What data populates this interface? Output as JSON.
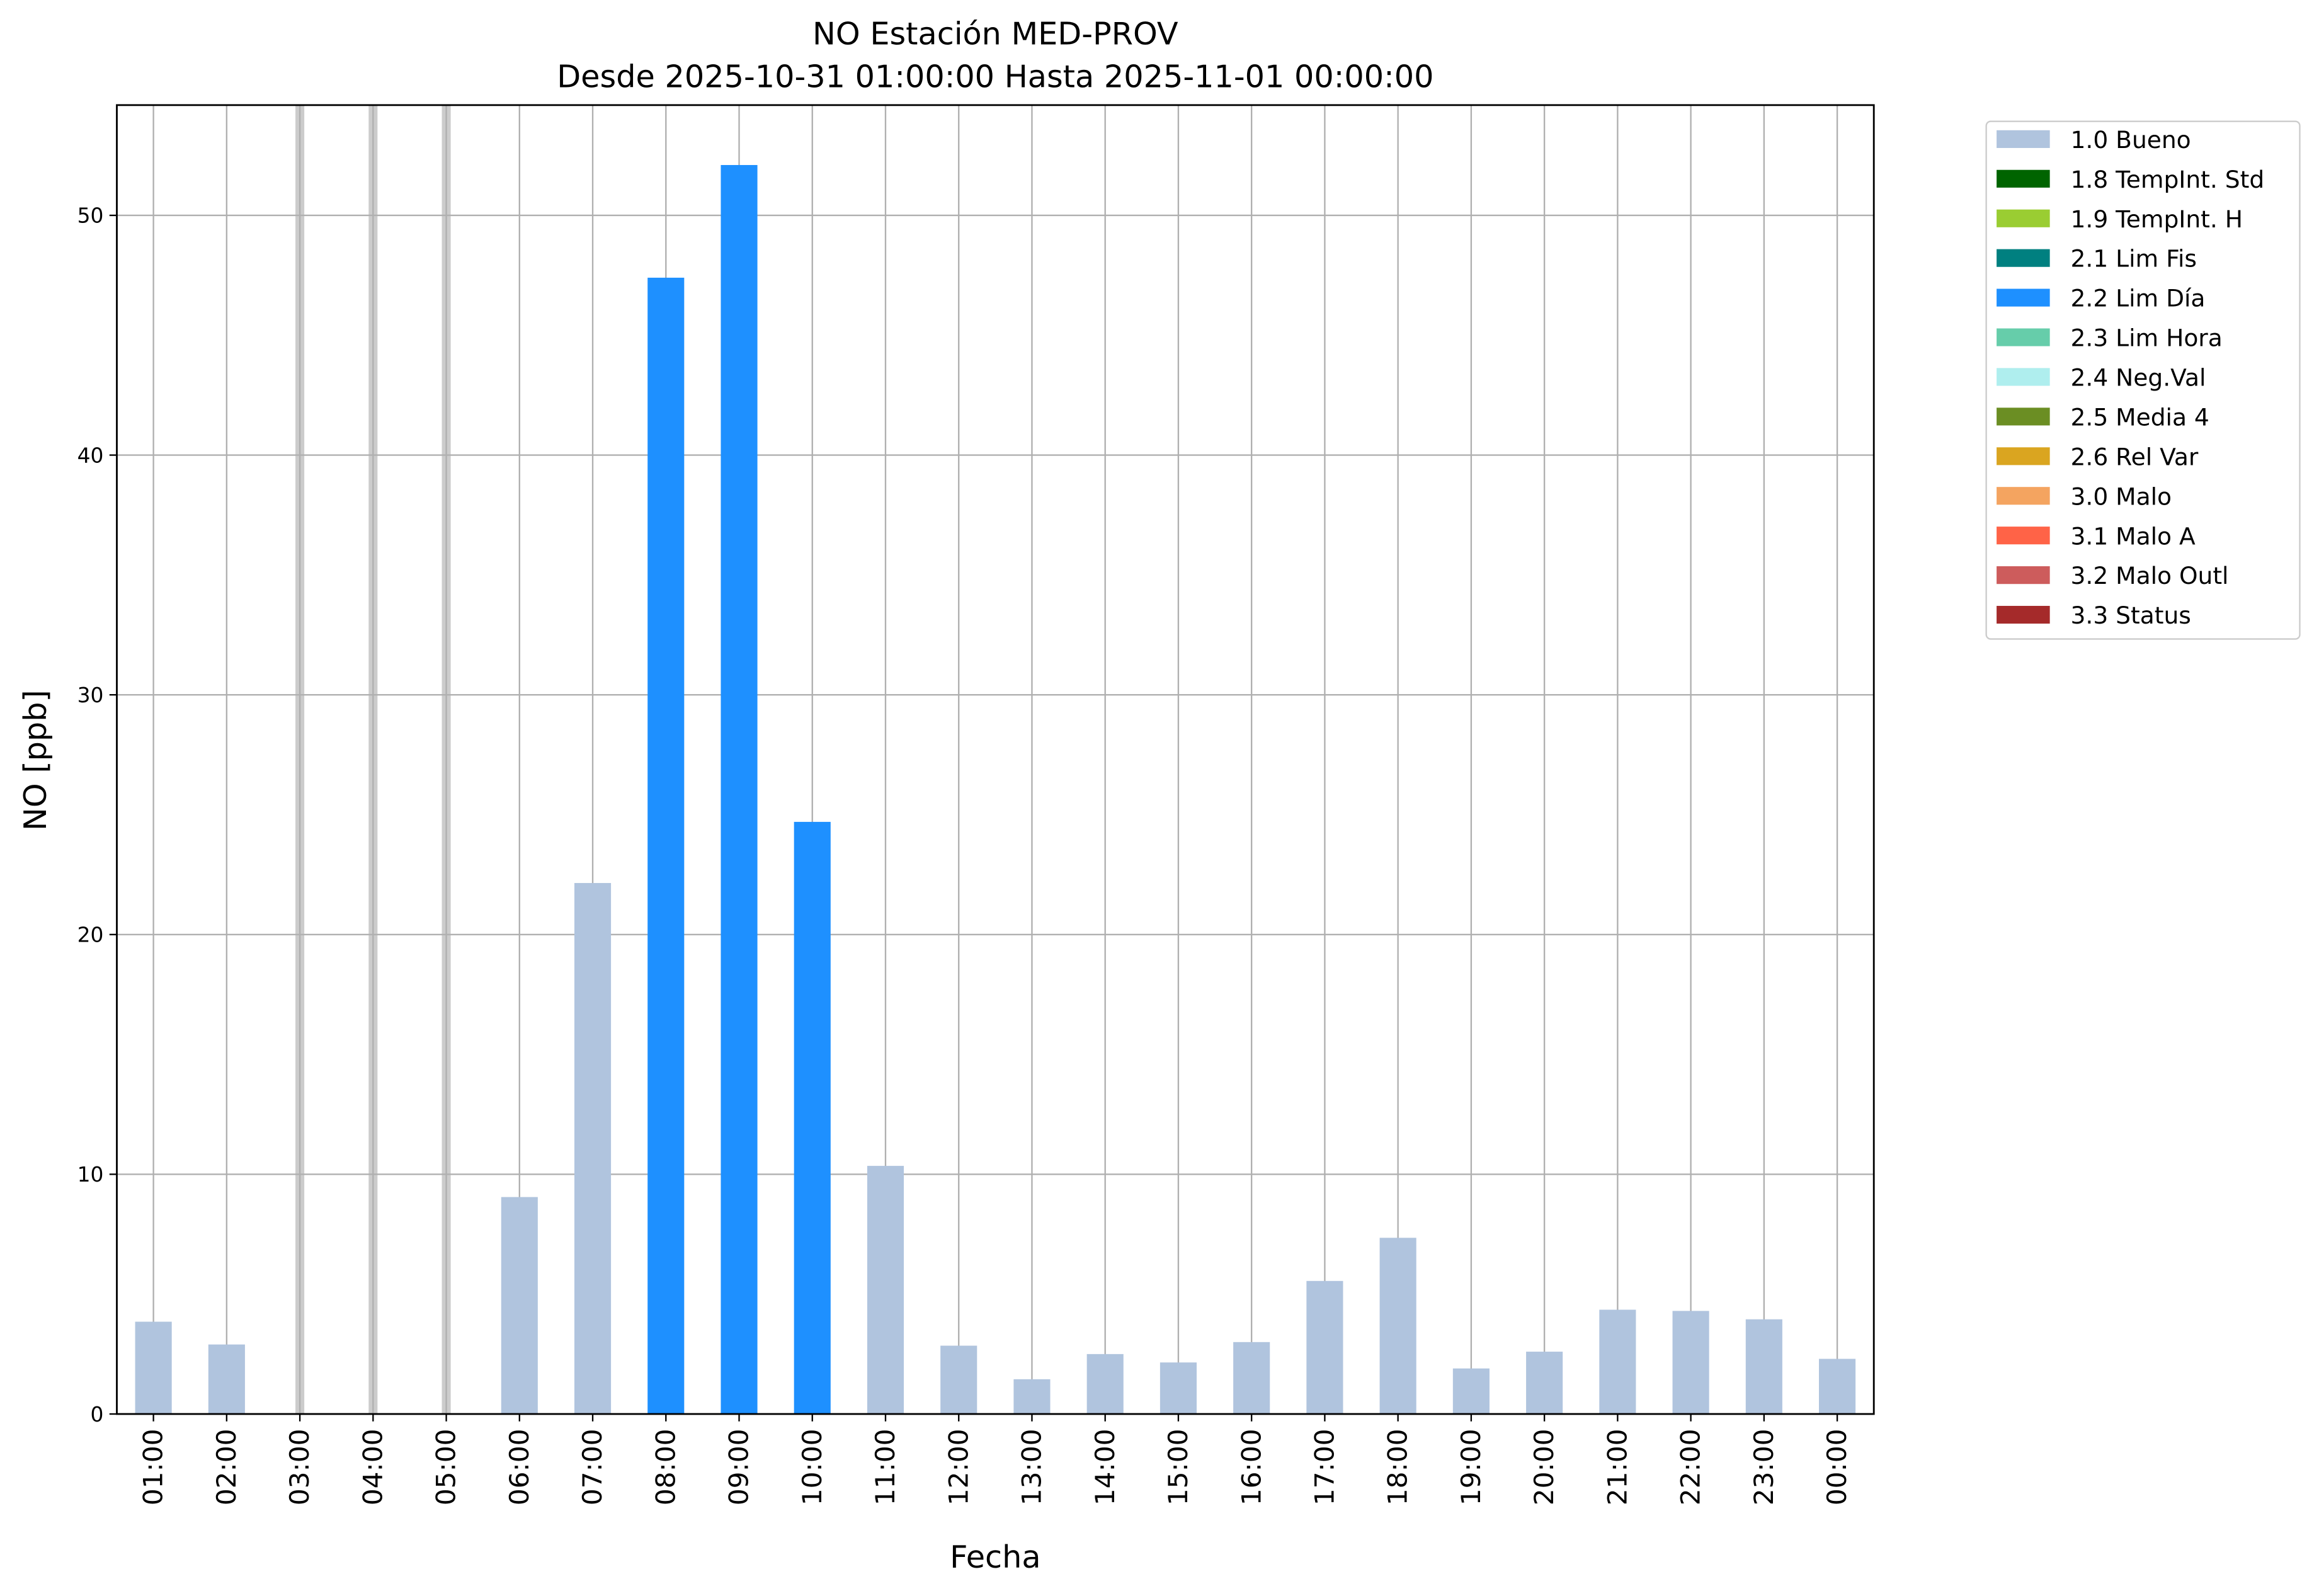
{
  "chart_data": {
    "type": "stacked_bar",
    "title": "NO Estación MED-PROV",
    "subtitle": "Desde 2025-10-31 01:00:00 Hasta 2025-11-01 00:00:00",
    "x_label": "Fecha",
    "y_label": "NO [ppb]",
    "categories": [
      "01:00",
      "02:00",
      "03:00",
      "04:00",
      "05:00",
      "06:00",
      "07:00",
      "08:00",
      "09:00",
      "10:00",
      "11:00",
      "12:00",
      "13:00",
      "14:00",
      "15:00",
      "16:00",
      "17:00",
      "18:00",
      "19:00",
      "20:00",
      "21:00",
      "22:00",
      "23:00",
      "00:00"
    ],
    "series": [
      {
        "name": "1.0 Bueno",
        "color": "#b0c4de",
        "values": [
          3.85,
          2.9,
          null,
          null,
          null,
          9.05,
          22.15,
          null,
          null,
          null,
          10.35,
          2.85,
          1.45,
          2.5,
          2.15,
          3.0,
          5.55,
          7.35,
          1.9,
          2.6,
          4.35,
          4.3,
          3.95,
          2.3
        ]
      },
      {
        "name": "1.8 TempInt. Std",
        "color": "#006400",
        "values": [
          null,
          null,
          null,
          null,
          null,
          null,
          null,
          null,
          null,
          null,
          null,
          null,
          null,
          null,
          null,
          null,
          null,
          null,
          null,
          null,
          null,
          null,
          null,
          null
        ]
      },
      {
        "name": "1.9 TempInt. H",
        "color": "#9acd32",
        "values": [
          null,
          null,
          null,
          null,
          null,
          null,
          null,
          null,
          null,
          null,
          null,
          null,
          null,
          null,
          null,
          null,
          null,
          null,
          null,
          null,
          null,
          null,
          null,
          null
        ]
      },
      {
        "name": "2.1 Lim Fis",
        "color": "#008080",
        "values": [
          null,
          null,
          null,
          null,
          null,
          null,
          null,
          null,
          null,
          null,
          null,
          null,
          null,
          null,
          null,
          null,
          null,
          null,
          null,
          null,
          null,
          null,
          null,
          null
        ]
      },
      {
        "name": "2.2 Lim Día",
        "color": "#1e90ff",
        "values": [
          null,
          null,
          null,
          null,
          null,
          null,
          null,
          47.4,
          52.1,
          24.7,
          null,
          null,
          null,
          null,
          null,
          null,
          null,
          null,
          null,
          null,
          null,
          null,
          null,
          null
        ]
      },
      {
        "name": "2.3 Lim Hora",
        "color": "#66cdaa",
        "values": [
          null,
          null,
          null,
          null,
          null,
          null,
          null,
          null,
          null,
          null,
          null,
          null,
          null,
          null,
          null,
          null,
          null,
          null,
          null,
          null,
          null,
          null,
          null,
          null
        ]
      },
      {
        "name": "2.4 Neg.Val",
        "color": "#afeeee",
        "values": [
          null,
          null,
          null,
          null,
          null,
          null,
          null,
          null,
          null,
          null,
          null,
          null,
          null,
          null,
          null,
          null,
          null,
          null,
          null,
          null,
          null,
          null,
          null,
          null
        ]
      },
      {
        "name": "2.5 Media 4",
        "color": "#6b8e23",
        "values": [
          null,
          null,
          null,
          null,
          null,
          null,
          null,
          null,
          null,
          null,
          null,
          null,
          null,
          null,
          null,
          null,
          null,
          null,
          null,
          null,
          null,
          null,
          null,
          null
        ]
      },
      {
        "name": "2.6 Rel Var",
        "color": "#daa520",
        "values": [
          null,
          null,
          null,
          null,
          null,
          null,
          null,
          null,
          null,
          null,
          null,
          null,
          null,
          null,
          null,
          null,
          null,
          null,
          null,
          null,
          null,
          null,
          null,
          null
        ]
      },
      {
        "name": "3.0 Malo",
        "color": "#f4a460",
        "values": [
          null,
          null,
          null,
          null,
          null,
          null,
          null,
          null,
          null,
          null,
          null,
          null,
          null,
          null,
          null,
          null,
          null,
          null,
          null,
          null,
          null,
          null,
          null,
          null
        ]
      },
      {
        "name": "3.1 Malo A",
        "color": "#ff6347",
        "values": [
          null,
          null,
          null,
          null,
          null,
          null,
          null,
          null,
          null,
          null,
          null,
          null,
          null,
          null,
          null,
          null,
          null,
          null,
          null,
          null,
          null,
          null,
          null,
          null
        ]
      },
      {
        "name": "3.2 Malo Outl",
        "color": "#cd5c5c",
        "values": [
          null,
          null,
          null,
          null,
          null,
          null,
          null,
          null,
          null,
          null,
          null,
          null,
          null,
          null,
          null,
          null,
          null,
          null,
          null,
          null,
          null,
          null,
          null,
          null
        ]
      },
      {
        "name": "3.3 Status",
        "color": "#a52a2a",
        "values": [
          null,
          null,
          null,
          null,
          null,
          null,
          null,
          null,
          null,
          null,
          null,
          null,
          null,
          null,
          null,
          null,
          null,
          null,
          null,
          null,
          null,
          null,
          null,
          null
        ]
      }
    ],
    "ylim": [
      0,
      54.6
    ],
    "yticks": [
      0,
      10,
      20,
      30,
      40,
      50
    ],
    "grid": true,
    "legend": "outside-right"
  }
}
